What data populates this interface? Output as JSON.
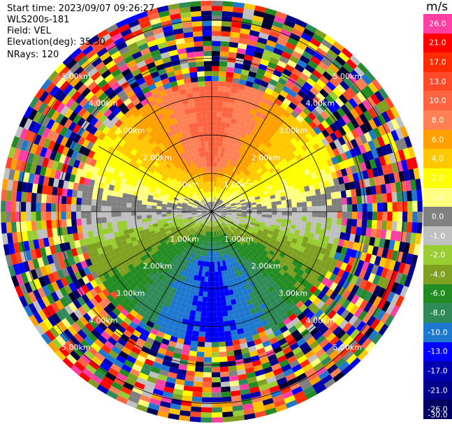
{
  "header": {
    "start_time": "Start time: 2023/09/07 09:26:27",
    "instrument": "WLS200s-181",
    "field": "Field: VEL",
    "elevation": "Elevation(deg): 35.30",
    "nrays": "NRays: 120"
  },
  "colorbar": {
    "unit": "m/s",
    "levels": [
      "26.0",
      "21.0",
      "17.0",
      "13.0",
      "10.0",
      "8.0",
      "6.0",
      "4.0",
      "2.0",
      "1.0",
      "0.0",
      "-1.0",
      "-2.0",
      "-4.0",
      "-6.0",
      "-8.0",
      "-10.0",
      "-13.0",
      "-17.0",
      "-21.0",
      "-26.0",
      "-30.0"
    ],
    "colors": [
      "#ff3fa3",
      "#ff0000",
      "#ff2a00",
      "#ff4a2a",
      "#ff6440",
      "#ff8055",
      "#ff9f00",
      "#ffc800",
      "#ffff00",
      "#ffff80",
      "#808080",
      "#c0c0c0",
      "#9acd32",
      "#7fa020",
      "#228b22",
      "#2e8b57",
      "#1e78d0",
      "#0000ff",
      "#0000b0",
      "#00008b",
      "#000060",
      "#000030"
    ]
  },
  "chart_data": {
    "type": "heatmap",
    "projection": "polar PPI (plan position indicator)",
    "field": "VEL",
    "nrays": 120,
    "elevation_deg": 35.3,
    "range_rings_km": [
      1.0,
      2.0,
      3.0,
      4.0,
      5.0
    ],
    "ring_labels": [
      "1.00km",
      "2.00km",
      "3.00km",
      "4.00km",
      "5.00km"
    ],
    "spoke_angles_deg": [
      0,
      30,
      60,
      90,
      120,
      150,
      180,
      210,
      240,
      270,
      300,
      330
    ],
    "max_range_km": 5.5,
    "valid_data_range_km": 3.4,
    "velocity_pattern": "approx. dipole: positive (orange/red, up to ~13 m/s) to the north, negative (blue, down to ~-10 m/s) to the south; near-zero grey/yellow band across the centre; noisy random values beyond ~3.4 km",
    "clim": [
      -30.0,
      26.0
    ]
  }
}
